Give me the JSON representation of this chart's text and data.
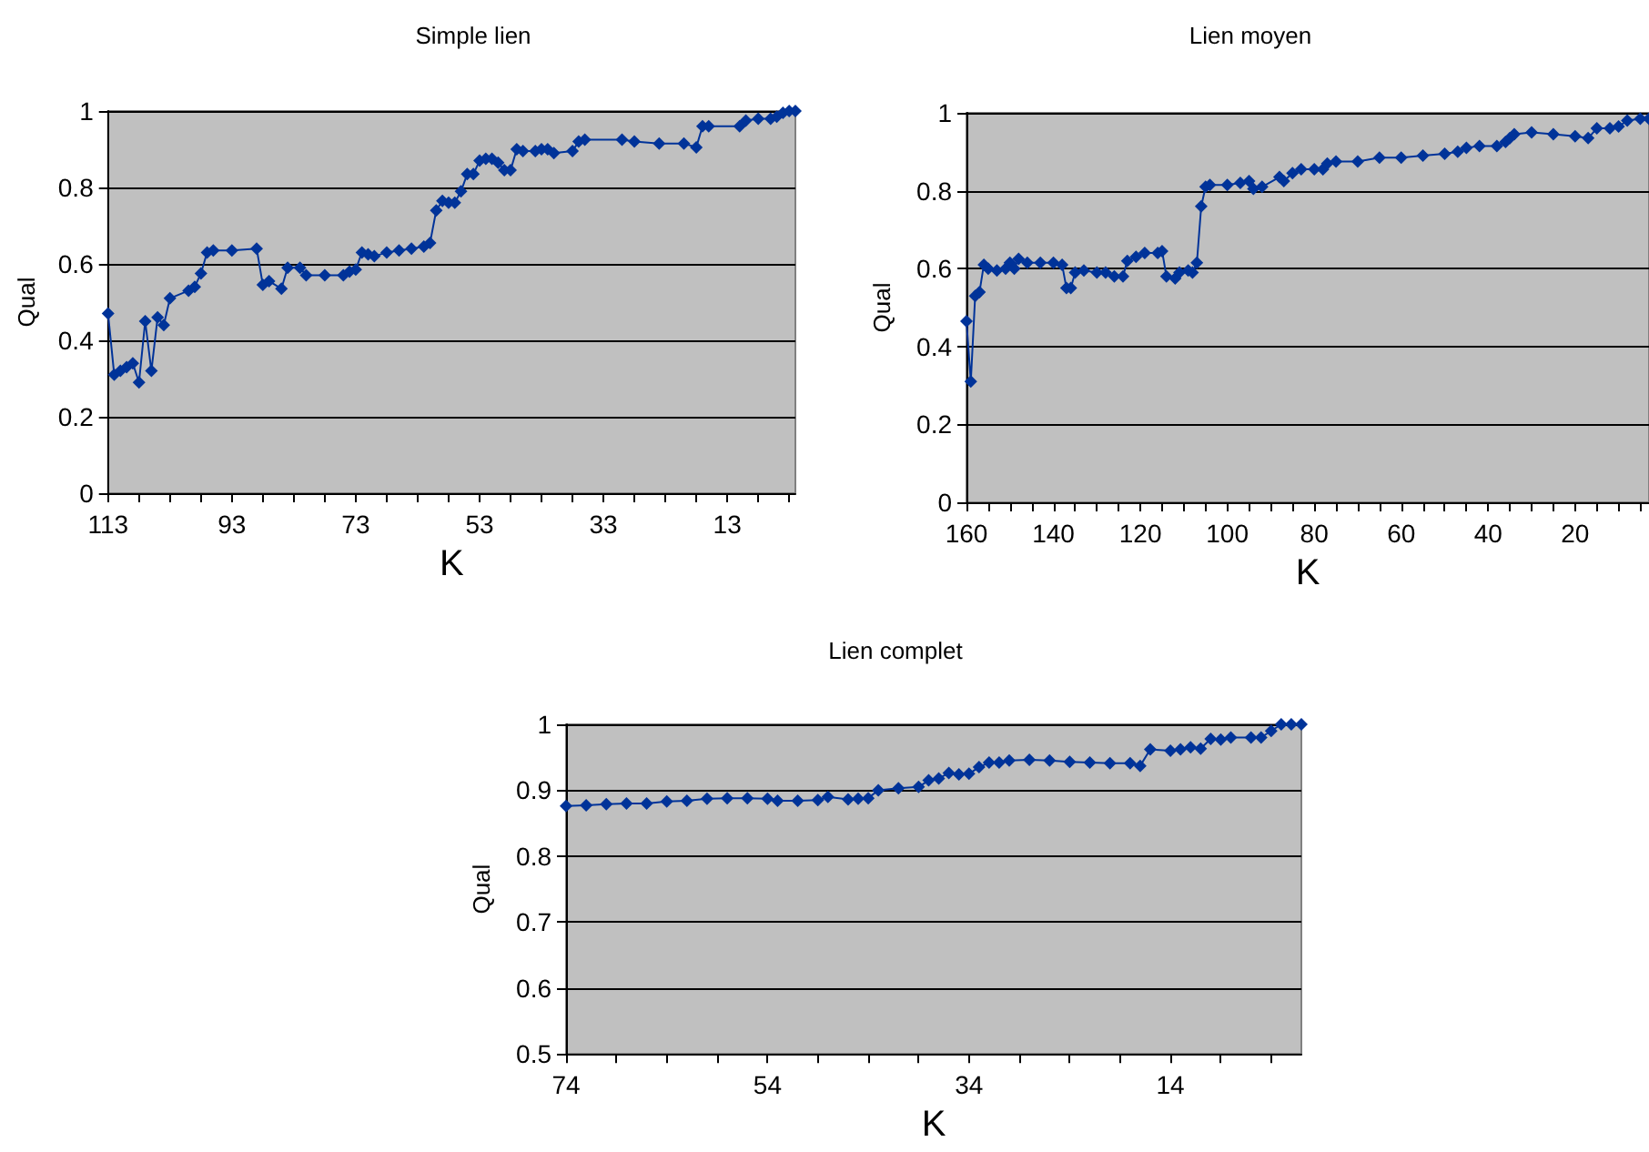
{
  "chart_data": [
    {
      "type": "line",
      "title": "Simple lien",
      "xlabel": "K",
      "ylabel": "Qual",
      "xlim": [
        113,
        2
      ],
      "xticks": [
        113,
        {
          "value": 108,
          "label": null
        },
        {
          "value": 103,
          "label": null
        },
        {
          "value": 98,
          "label": null
        },
        93,
        {
          "value": 88,
          "label": null
        },
        {
          "value": 83,
          "label": null
        },
        {
          "value": 78,
          "label": null
        },
        73,
        {
          "value": 68,
          "label": null
        },
        {
          "value": 63,
          "label": null
        },
        {
          "value": 58,
          "label": null
        },
        53,
        {
          "value": 48,
          "label": null
        },
        {
          "value": 43,
          "label": null
        },
        {
          "value": 38,
          "label": null
        },
        33,
        {
          "value": 28,
          "label": null
        },
        {
          "value": 23,
          "label": null
        },
        {
          "value": 18,
          "label": null
        },
        13,
        {
          "value": 8,
          "label": null
        },
        {
          "value": 3,
          "label": null
        }
      ],
      "ylim": [
        0,
        1
      ],
      "yticks": [
        0,
        0.2,
        0.4,
        0.6,
        0.8,
        1
      ],
      "grid": "y",
      "marker": "diamond",
      "line_style": "solid",
      "series": [
        {
          "color": "#003399",
          "x": [
            113,
            112,
            111,
            110,
            109,
            108,
            107,
            106,
            105,
            104,
            103,
            100,
            99,
            98,
            97,
            96,
            93,
            89,
            88,
            87,
            85,
            84,
            82,
            81,
            78,
            75,
            74,
            73,
            72,
            71,
            70,
            68,
            66,
            64,
            62,
            61,
            60,
            59,
            58,
            57,
            56,
            55,
            54,
            53,
            52,
            51,
            50,
            49,
            48,
            47,
            46,
            44,
            43,
            42,
            41,
            38,
            37,
            36,
            30,
            28,
            24,
            20,
            18,
            17,
            16,
            11,
            10,
            8,
            6,
            5,
            4,
            3,
            2
          ],
          "values": [
            0.47,
            0.31,
            0.32,
            0.33,
            0.34,
            0.29,
            0.45,
            0.32,
            0.46,
            0.44,
            0.51,
            0.53,
            0.54,
            0.575,
            0.63,
            0.635,
            0.635,
            0.64,
            0.545,
            0.555,
            0.535,
            0.59,
            0.59,
            0.57,
            0.57,
            0.57,
            0.58,
            0.585,
            0.63,
            0.625,
            0.62,
            0.63,
            0.635,
            0.64,
            0.645,
            0.655,
            0.74,
            0.765,
            0.76,
            0.76,
            0.79,
            0.835,
            0.835,
            0.87,
            0.875,
            0.875,
            0.865,
            0.845,
            0.845,
            0.9,
            0.895,
            0.895,
            0.9,
            0.9,
            0.89,
            0.895,
            0.92,
            0.925,
            0.925,
            0.92,
            0.915,
            0.915,
            0.905,
            0.96,
            0.96,
            0.96,
            0.975,
            0.98,
            0.98,
            0.985,
            0.995,
            1,
            1
          ]
        }
      ]
    },
    {
      "type": "line",
      "title": "Lien moyen",
      "xlabel": "K",
      "ylabel": "Qual",
      "xlim": [
        160,
        3
      ],
      "xticks": [
        160,
        {
          "value": 155,
          "label": null
        },
        {
          "value": 150,
          "label": null
        },
        {
          "value": 145,
          "label": null
        },
        140,
        {
          "value": 135,
          "label": null
        },
        {
          "value": 130,
          "label": null
        },
        {
          "value": 125,
          "label": null
        },
        120,
        {
          "value": 115,
          "label": null
        },
        {
          "value": 110,
          "label": null
        },
        {
          "value": 105,
          "label": null
        },
        100,
        {
          "value": 95,
          "label": null
        },
        {
          "value": 90,
          "label": null
        },
        {
          "value": 85,
          "label": null
        },
        80,
        {
          "value": 75,
          "label": null
        },
        {
          "value": 70,
          "label": null
        },
        {
          "value": 65,
          "label": null
        },
        60,
        {
          "value": 55,
          "label": null
        },
        {
          "value": 50,
          "label": null
        },
        {
          "value": 45,
          "label": null
        },
        40,
        {
          "value": 35,
          "label": null
        },
        {
          "value": 30,
          "label": null
        },
        {
          "value": 25,
          "label": null
        },
        20,
        {
          "value": 15,
          "label": null
        },
        {
          "value": 10,
          "label": null
        },
        {
          "value": 5,
          "label": null
        }
      ],
      "ylim": [
        0,
        1
      ],
      "yticks": [
        0,
        0.2,
        0.4,
        0.6,
        0.8,
        1
      ],
      "grid": "y",
      "marker": "diamond",
      "line_style": "solid",
      "series": [
        {
          "color": "#003399",
          "x": [
            160,
            159,
            158,
            157,
            156,
            155,
            153,
            151,
            150,
            149,
            148,
            146,
            143,
            140,
            138,
            137,
            136,
            135,
            133,
            130,
            128,
            126,
            124,
            123,
            121,
            119,
            116,
            115,
            114,
            112,
            111,
            109,
            108,
            107,
            106,
            105,
            104,
            100,
            97,
            95,
            94,
            92,
            88,
            87,
            85,
            83,
            80,
            78,
            77,
            75,
            70,
            65,
            60,
            55,
            50,
            47,
            45,
            42,
            38,
            36,
            35,
            34,
            30,
            25,
            20,
            17,
            15,
            12,
            10,
            8,
            5,
            3
          ],
          "values": [
            0.465,
            0.31,
            0.53,
            0.54,
            0.61,
            0.6,
            0.595,
            0.6,
            0.615,
            0.6,
            0.625,
            0.615,
            0.615,
            0.615,
            0.61,
            0.55,
            0.55,
            0.59,
            0.595,
            0.59,
            0.59,
            0.58,
            0.58,
            0.62,
            0.63,
            0.64,
            0.64,
            0.645,
            0.58,
            0.575,
            0.59,
            0.595,
            0.59,
            0.615,
            0.76,
            0.81,
            0.815,
            0.815,
            0.82,
            0.825,
            0.805,
            0.81,
            0.835,
            0.825,
            0.845,
            0.855,
            0.855,
            0.855,
            0.87,
            0.875,
            0.875,
            0.885,
            0.885,
            0.89,
            0.895,
            0.9,
            0.91,
            0.915,
            0.915,
            0.925,
            0.935,
            0.945,
            0.95,
            0.945,
            0.94,
            0.935,
            0.96,
            0.96,
            0.965,
            0.98,
            0.985,
            0.985
          ]
        }
      ]
    },
    {
      "type": "line",
      "title": "Lien complet",
      "xlabel": "K",
      "ylabel": "Qual",
      "xlim": [
        74,
        1
      ],
      "xticks": [
        74,
        {
          "value": 69,
          "label": null
        },
        {
          "value": 64,
          "label": null
        },
        {
          "value": 59,
          "label": null
        },
        54,
        {
          "value": 49,
          "label": null
        },
        {
          "value": 44,
          "label": null
        },
        {
          "value": 39,
          "label": null
        },
        34,
        {
          "value": 29,
          "label": null
        },
        {
          "value": 24,
          "label": null
        },
        {
          "value": 19,
          "label": null
        },
        14,
        {
          "value": 9,
          "label": null
        },
        {
          "value": 4,
          "label": null
        }
      ],
      "ylim": [
        0.5,
        1
      ],
      "yticks": [
        0.5,
        0.6,
        0.7,
        0.8,
        0.9,
        1
      ],
      "grid": "y",
      "marker": "diamond",
      "line_style": "solid",
      "series": [
        {
          "color": "#003399",
          "x": [
            74,
            72,
            70,
            68,
            66,
            64,
            62,
            60,
            58,
            56,
            54,
            53,
            51,
            49,
            48,
            46,
            45,
            44,
            43,
            41,
            39,
            38,
            37,
            36,
            35,
            34,
            33,
            32,
            31,
            30,
            28,
            26,
            24,
            22,
            20,
            18,
            17,
            16,
            14,
            13,
            12,
            11,
            10,
            9,
            8,
            6,
            5,
            4,
            3,
            2,
            1
          ],
          "values": [
            0.876,
            0.877,
            0.879,
            0.88,
            0.88,
            0.883,
            0.884,
            0.887,
            0.888,
            0.888,
            0.887,
            0.884,
            0.884,
            0.885,
            0.89,
            0.886,
            0.887,
            0.888,
            0.9,
            0.903,
            0.905,
            0.915,
            0.918,
            0.926,
            0.924,
            0.925,
            0.935,
            0.942,
            0.942,
            0.945,
            0.946,
            0.945,
            0.943,
            0.942,
            0.941,
            0.941,
            0.937,
            0.962,
            0.96,
            0.962,
            0.965,
            0.963,
            0.978,
            0.977,
            0.98,
            0.98,
            0.98,
            0.99,
            1,
            1,
            1
          ]
        }
      ]
    }
  ]
}
